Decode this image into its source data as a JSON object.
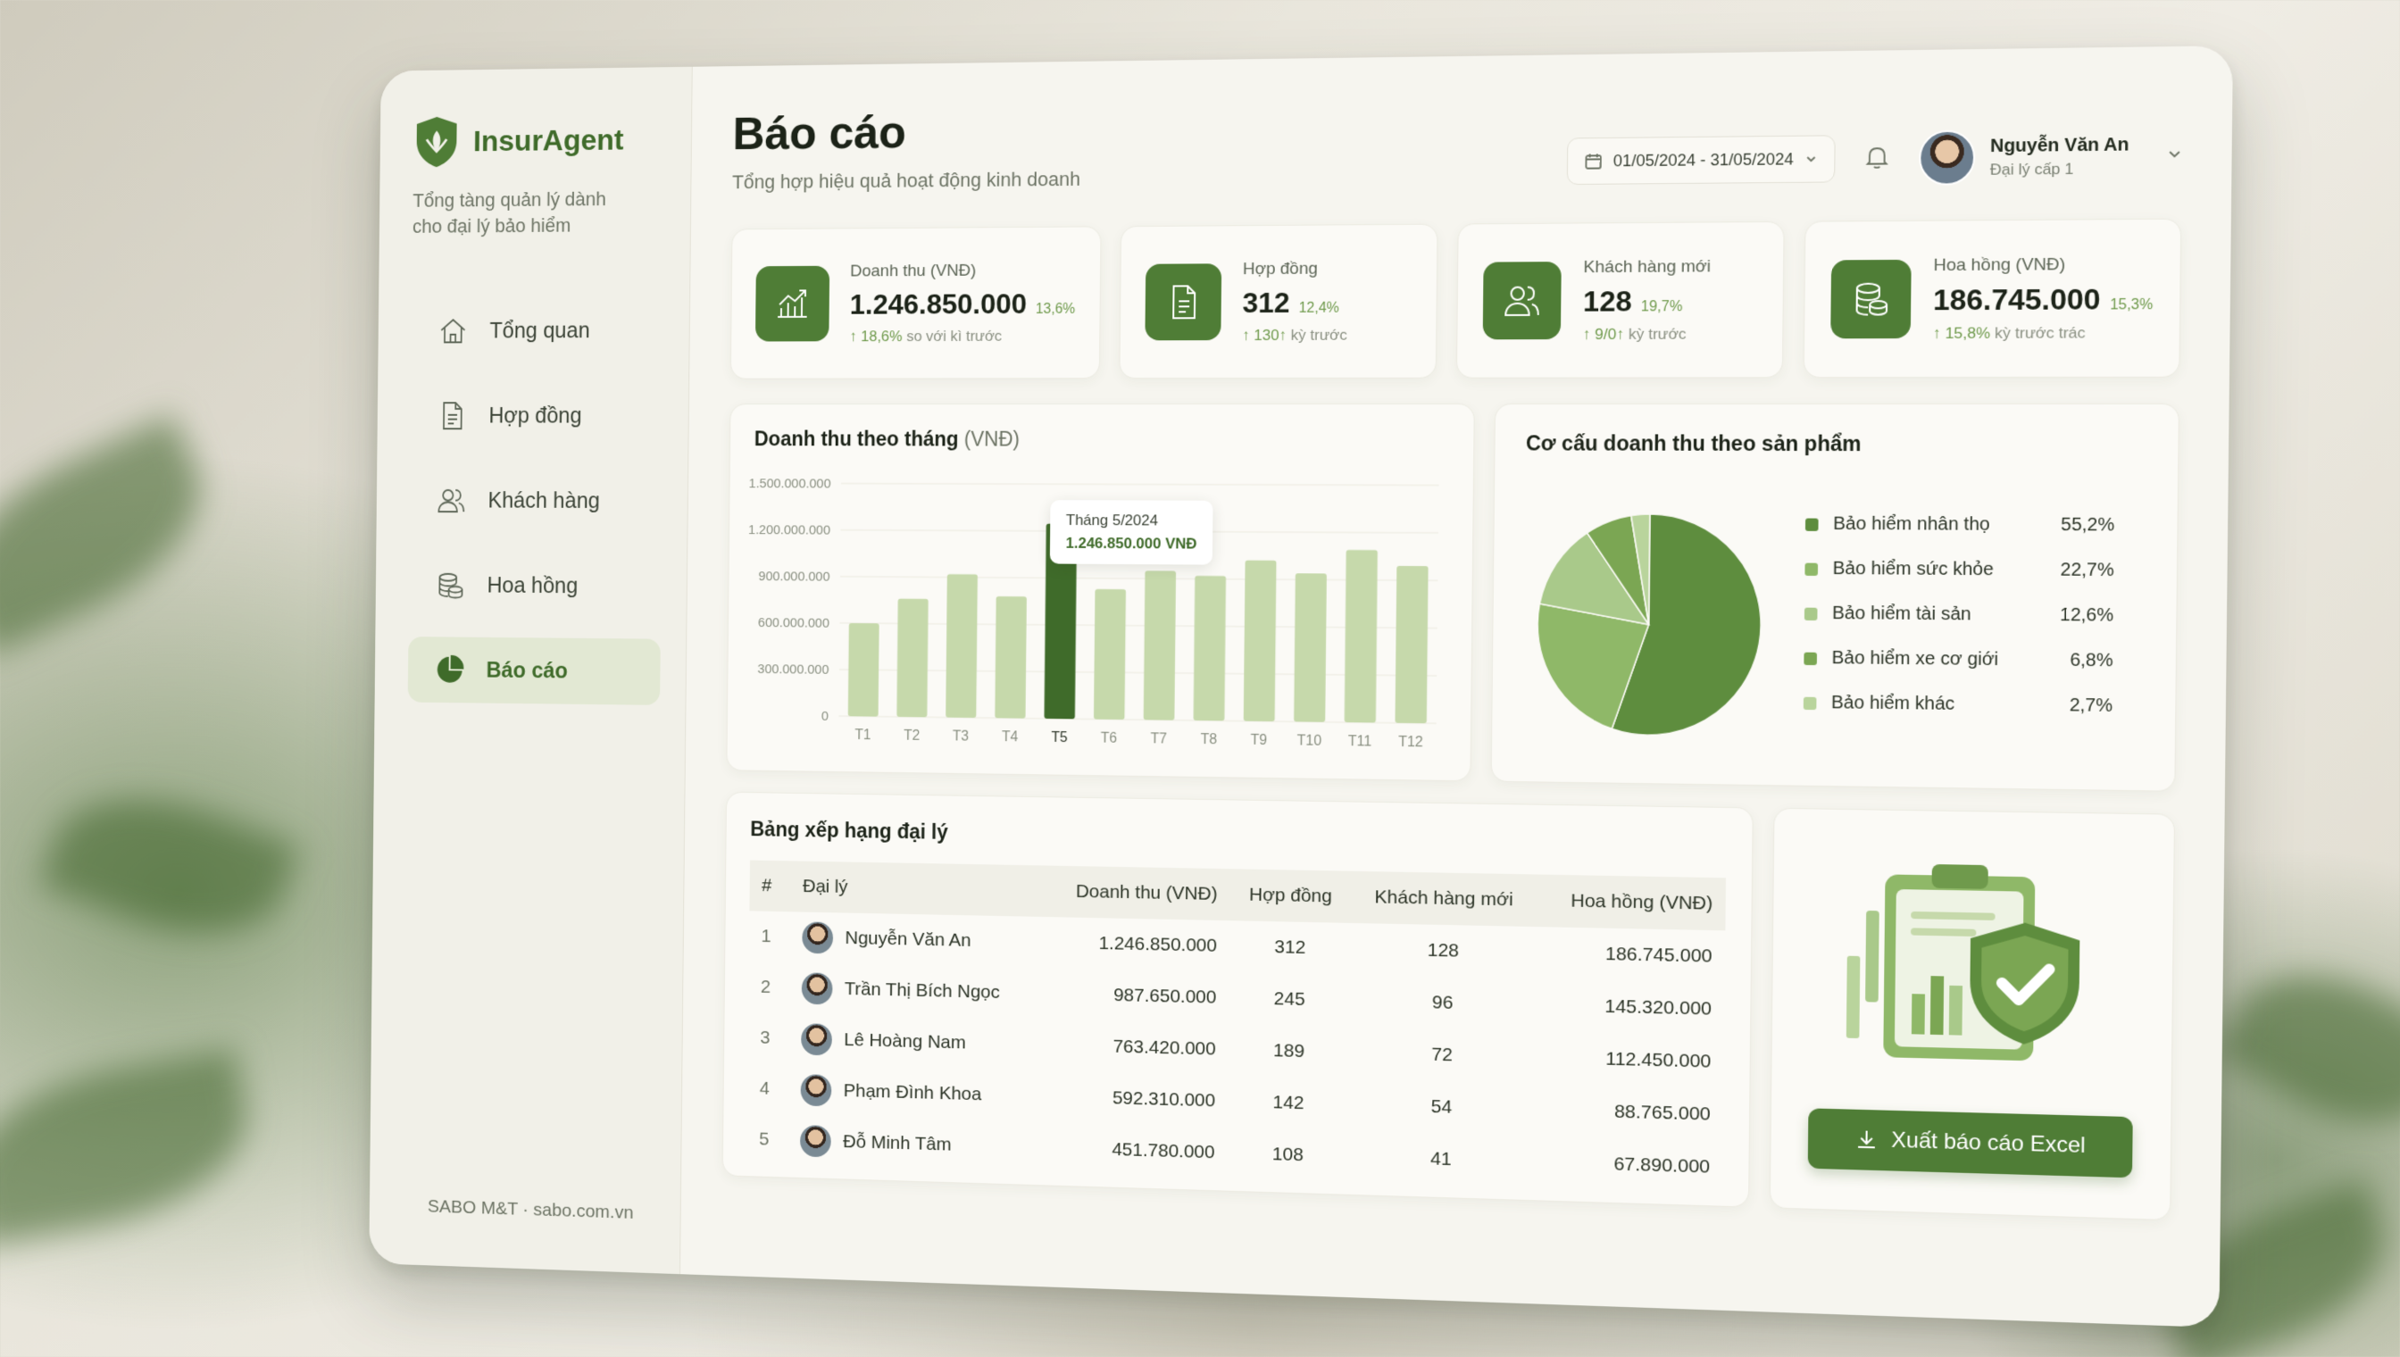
{
  "brand": {
    "name": "InsurAgent",
    "tagline": "Tổng tàng quản lý dành cho đại lý bảo hiểm"
  },
  "nav": [
    {
      "label": "Tổng quan",
      "icon": "home-icon",
      "active": false
    },
    {
      "label": "Hợp đồng",
      "icon": "document-icon",
      "active": false
    },
    {
      "label": "Khách hàng",
      "icon": "users-icon",
      "active": false
    },
    {
      "label": "Hoa hồng",
      "icon": "coins-icon",
      "active": false
    },
    {
      "label": "Báo cáo",
      "icon": "pie-chart-icon",
      "active": true
    }
  ],
  "sidebar_footer": "SABO M&T · sabo.com.vn",
  "header": {
    "title": "Báo cáo",
    "subtitle": "Tổng hợp hiệu quả hoạt động kinh doanh",
    "date_range": "01/05/2024 - 31/05/2024",
    "user_name": "Nguyễn Văn An",
    "user_role": "Đại lý cấp 1"
  },
  "stats": [
    {
      "label": "Doanh thu (VNĐ)",
      "value": "1.246.850.000",
      "pct": "13,6%",
      "change": "↑ 18,6%",
      "change_note": "so với kì trước",
      "icon": "chart-up-icon"
    },
    {
      "label": "Hợp đồng",
      "value": "312",
      "pct": "12,4%",
      "change": "↑ 130↑",
      "change_note": "kỳ trước",
      "icon": "document-icon"
    },
    {
      "label": "Khách hàng mới",
      "value": "128",
      "pct": "19,7%",
      "change": "↑ 9/0↑",
      "change_note": "kỳ trước",
      "icon": "users-icon"
    },
    {
      "label": "Hoa hồng (VNĐ)",
      "value": "186.745.000",
      "pct": "15,3%",
      "change": "↑ 15,8%",
      "change_note": "kỳ trước trác",
      "icon": "coins-icon"
    }
  ],
  "bar_chart": {
    "title": "Doanh thu theo tháng",
    "unit": "(VNĐ)",
    "tooltip_label": "Tháng 5/2024",
    "tooltip_value": "1.246.850.000 VNĐ"
  },
  "pie_chart": {
    "title": "Cơ cấu doanh thu theo sản phẩm"
  },
  "chart_data": [
    {
      "type": "bar",
      "title": "Doanh thu theo tháng (VNĐ)",
      "categories": [
        "T1",
        "T2",
        "T3",
        "T4",
        "T5",
        "T6",
        "T7",
        "T8",
        "T9",
        "T10",
        "T11",
        "T12"
      ],
      "values": [
        600000000,
        760000000,
        920000000,
        780000000,
        1246850000,
        830000000,
        950000000,
        920000000,
        1020000000,
        940000000,
        1090000000,
        990000000
      ],
      "yticks": [
        "0",
        "300.000.000",
        "600.000.000",
        "900.000.000",
        "1.200.000.000",
        "1.500.000.000"
      ],
      "ylim": [
        0,
        1500000000
      ],
      "highlight_index": 4,
      "grid": true
    },
    {
      "type": "pie",
      "title": "Cơ cấu doanh thu theo sản phẩm",
      "labels": [
        "Bảo hiểm nhân thọ",
        "Bảo hiểm sức khỏe",
        "Bảo hiểm tài sản",
        "Bảo hiểm xe cơ giới",
        "Bảo hiểm khác"
      ],
      "values": [
        55.2,
        22.7,
        12.6,
        6.8,
        2.7
      ],
      "display_values": [
        "55,2%",
        "22,7%",
        "12,6%",
        "6,8%",
        "2,7%"
      ],
      "colors": [
        "#5e8d3e",
        "#8fb868",
        "#a9c98a",
        "#7ba653",
        "#b9d49c"
      ],
      "legend": "right"
    }
  ],
  "table": {
    "title": "Bảng xếp hạng đại lý",
    "columns": [
      "#",
      "Đại lý",
      "Doanh thu (VNĐ)",
      "Hợp đồng",
      "Khách hàng mới",
      "Hoa hồng (VNĐ)"
    ],
    "rows": [
      [
        "1",
        "Nguyễn Văn An",
        "1.246.850.000",
        "312",
        "128",
        "186.745.000"
      ],
      [
        "2",
        "Trần Thị Bích Ngọc",
        "987.650.000",
        "245",
        "96",
        "145.320.000"
      ],
      [
        "3",
        "Lê Hoàng Nam",
        "763.420.000",
        "189",
        "72",
        "112.450.000"
      ],
      [
        "4",
        "Phạm Đình Khoa",
        "592.310.000",
        "142",
        "54",
        "88.765.000"
      ],
      [
        "5",
        "Đỗ Minh Tâm",
        "451.780.000",
        "108",
        "41",
        "67.890.000"
      ]
    ]
  },
  "export": {
    "label": "Xuất báo cáo Excel",
    "icon": "download-icon"
  },
  "colors": {
    "primary": "#4f7d36",
    "accent_light": "#e2e8d3",
    "bar": "#c6d9ab",
    "bar_highlight": "#3f6b2a"
  }
}
